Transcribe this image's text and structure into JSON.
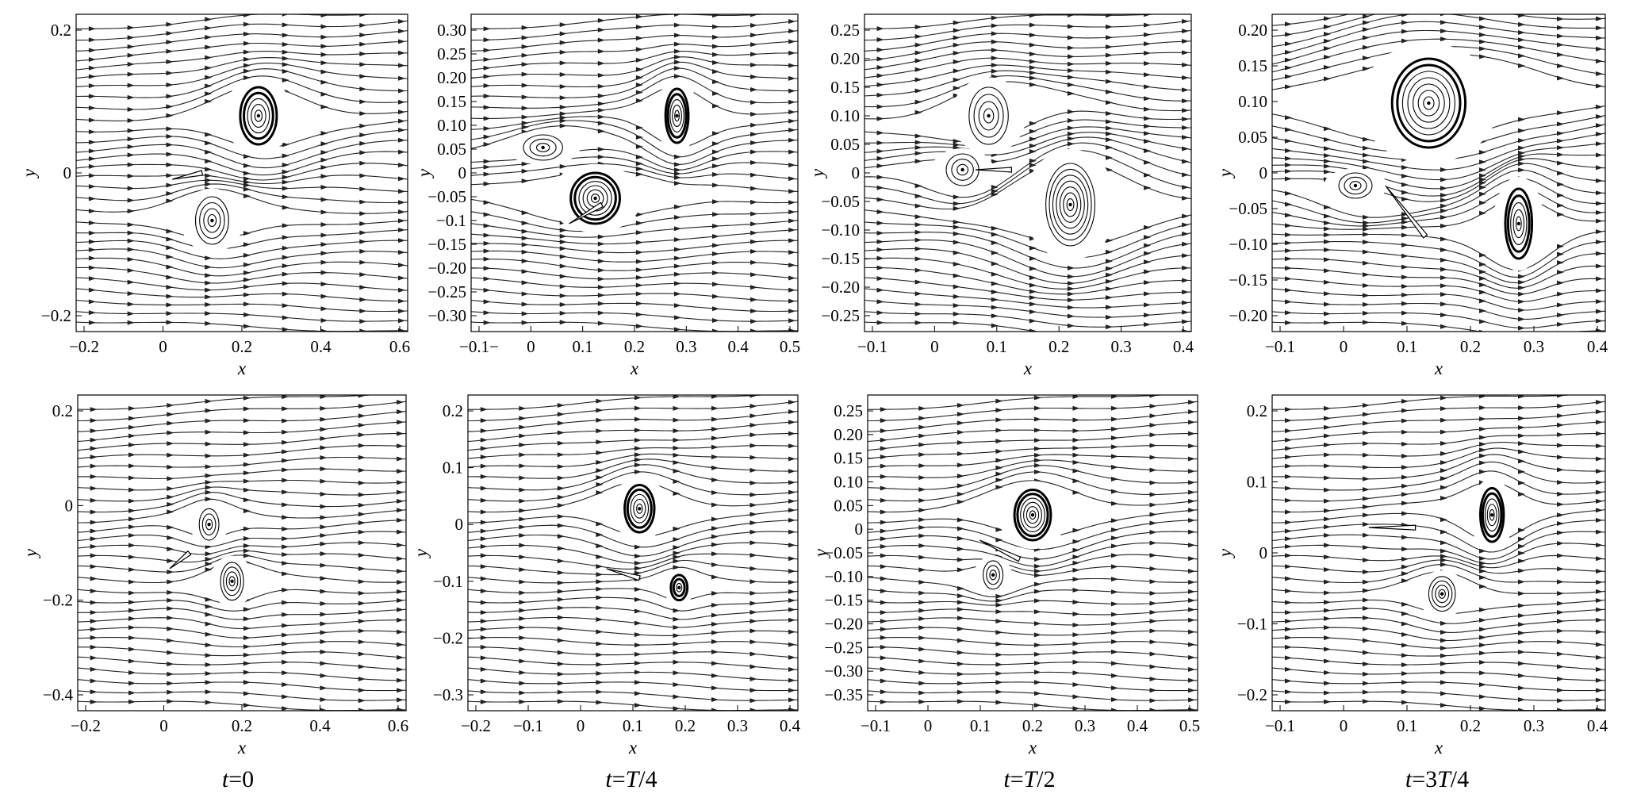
{
  "panels": [
    {
      "id": "r1c1",
      "x_ticks": [
        "−0.2",
        "0",
        "0.2",
        "0.4",
        "0.6"
      ],
      "y_ticks": [
        "0.2",
        "0",
        "−0.2"
      ],
      "xlabel": "x",
      "ylabel": "y"
    },
    {
      "id": "r1c2",
      "x_ticks": [
        "−0.1−",
        "0",
        "0.1",
        "0.2",
        "0.3",
        "0.4",
        "0.5"
      ],
      "y_ticks": [
        "0.30",
        "0.25",
        "0.20",
        "0.15",
        "0.10",
        "0.05",
        "0",
        "−0.05",
        "−0.1",
        "−0.15",
        "−0.20",
        "−0.25",
        "−0.30"
      ],
      "xlabel": "x",
      "ylabel": "y"
    },
    {
      "id": "r1c3",
      "x_ticks": [
        "−0.1",
        "0",
        "0.1",
        "0.2",
        "0.3",
        "0.4"
      ],
      "y_ticks": [
        "0.25",
        "0.20",
        "0.15",
        "0.10",
        "0.05",
        "0",
        "−0.05",
        "−0.10",
        "−0.15",
        "−0.20",
        "−0.25"
      ],
      "xlabel": "x",
      "ylabel": "y"
    },
    {
      "id": "r1c4",
      "x_ticks": [
        "−0.1",
        "0",
        "0.1",
        "0.2",
        "0.3",
        "0.4"
      ],
      "y_ticks": [
        "0.20",
        "0.15",
        "0.10",
        "0.05",
        "0",
        "−0.05",
        "−0.10",
        "−0.15",
        "−0.20"
      ],
      "xlabel": "x",
      "ylabel": "y"
    },
    {
      "id": "r2c1",
      "x_ticks": [
        "−0.2",
        "0",
        "0.2",
        "0.4",
        "0.6"
      ],
      "y_ticks": [
        "0.2",
        "0",
        "−0.2",
        "−0.4"
      ],
      "xlabel": "x",
      "ylabel": "y"
    },
    {
      "id": "r2c2",
      "x_ticks": [
        "−0.2",
        "−0.1",
        "0",
        "0.1",
        "0.2",
        "0.3",
        "0.4"
      ],
      "y_ticks": [
        "0.2",
        "0.1",
        "0",
        "−0.1",
        "−0.2",
        "−0.3"
      ],
      "xlabel": "x",
      "ylabel": "y"
    },
    {
      "id": "r2c3",
      "x_ticks": [
        "−0.1",
        "0",
        "0.1",
        "0.2",
        "0.3",
        "0.4",
        "0.5"
      ],
      "y_ticks": [
        "0.25",
        "0.20",
        "0.15",
        "0.10",
        "0.05",
        "0",
        "−0.05",
        "−0.10",
        "−0.15",
        "−0.20",
        "−0.25",
        "−0.30",
        "−0.35"
      ],
      "xlabel": "x",
      "ylabel": "y"
    },
    {
      "id": "r2c4",
      "x_ticks": [
        "−0.1",
        "0",
        "0.1",
        "0.2",
        "0.3",
        "0.4"
      ],
      "y_ticks": [
        "0.2",
        "0.1",
        "0",
        "−0.1",
        "−0.2"
      ],
      "xlabel": "x",
      "ylabel": "y"
    }
  ],
  "captions": [
    {
      "id": "c1",
      "t": "t",
      "rest": "=0"
    },
    {
      "id": "c2",
      "t": "t",
      "rest": "=",
      "frac_it": "T",
      "frac_rest": "/4"
    },
    {
      "id": "c3",
      "t": "t",
      "rest": "=",
      "frac_it": "T",
      "frac_rest": "/2"
    },
    {
      "id": "c4",
      "t": "t",
      "rest": "=3",
      "frac_it": "T",
      "frac_rest": "/4"
    }
  ]
}
